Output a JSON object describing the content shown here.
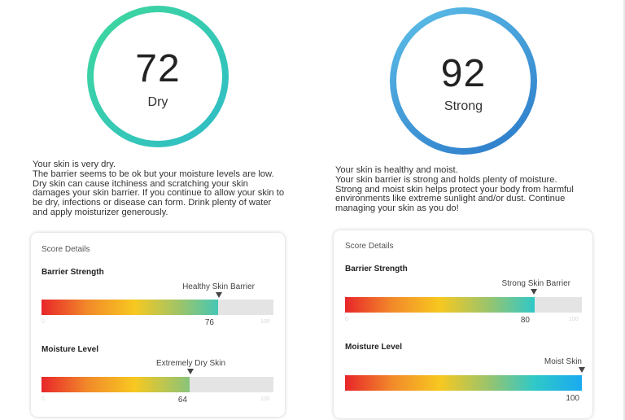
{
  "colors": {
    "bar_gradient": [
      "#e8262a",
      "#f28a2a",
      "#f7c820",
      "#9cc46a",
      "#30c8c8",
      "#1aaaf0"
    ],
    "ring_left": [
      "#3ed89c",
      "#2fbcc8"
    ],
    "ring_right": [
      "#5ec0e8",
      "#2a78c8"
    ]
  },
  "left": {
    "score": "72",
    "status": "Dry",
    "description": [
      "Your skin is very dry.",
      "The barrier seems to be ok but your moisture levels are low.",
      "Dry skin can cause itchiness and scratching your skin",
      "damages your skin barrier. If you continue to allow your skin to",
      "be dry, infections or disease can form. Drink plenty of water",
      "and apply moisturizer generously."
    ],
    "card": {
      "title": "Score Details",
      "barrier": {
        "title": "Barrier Strength",
        "marker_label": "Healthy Skin Barrier",
        "value": 76,
        "value_label": "76",
        "min": "0",
        "max": "100"
      },
      "moisture": {
        "title": "Moisture Level",
        "marker_label": "Extremely Dry Skin",
        "value": 64,
        "value_label": "64",
        "min": "0",
        "max": "100"
      }
    }
  },
  "right": {
    "score": "92",
    "status": "Strong",
    "description": [
      "Your skin is healthy and moist.",
      "Your skin barrier is strong and holds plenty of moisture.",
      "Strong and moist skin helps protect your body from harmful",
      "environments like extreme sunlight and/or dust. Continue",
      "managing your skin as you do!"
    ],
    "card": {
      "title": "Score Details",
      "barrier": {
        "title": "Barrier Strength",
        "marker_label": "Strong Skin Barrier",
        "value": 80,
        "value_label": "80",
        "min": "0",
        "max": "100"
      },
      "moisture": {
        "title": "Moisture Level",
        "marker_label": "Moist Skin",
        "value": 100,
        "value_label": "100",
        "min": "0",
        "max": "100"
      }
    }
  }
}
